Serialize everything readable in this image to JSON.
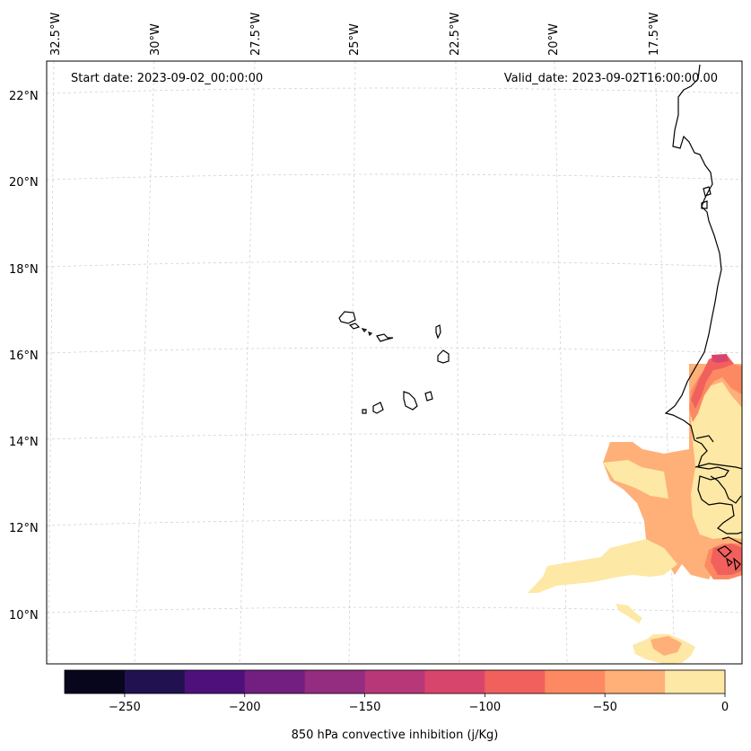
{
  "map": {
    "start_date_text": "Start date: 2023-09-02_00:00:00",
    "valid_date_text": "Valid_date: 2023-09-02T16:00:00.00",
    "lon_labels": [
      "32.5°W",
      "30°W",
      "27.5°W",
      "25°W",
      "22.5°W",
      "20°W",
      "17.5°W"
    ],
    "lat_labels": [
      "22°N",
      "20°N",
      "18°N",
      "16°N",
      "14°N",
      "12°N",
      "10°N"
    ],
    "gridlines": true,
    "coastline_color": "#000000"
  },
  "colorbar": {
    "label": "850 hPa convective inhibition (j/Kg)",
    "ticks": [
      "−250",
      "−200",
      "−150",
      "−100",
      "−50",
      "0"
    ],
    "levels": [
      -275,
      -250,
      -225,
      -200,
      -175,
      -150,
      -125,
      -100,
      -75,
      -50,
      -25,
      0
    ],
    "colors": [
      "#07061c",
      "#221150",
      "#4e117b",
      "#721f81",
      "#942c80",
      "#b73779",
      "#d8456c",
      "#f1605d",
      "#fc8961",
      "#feb078",
      "#fde8a5"
    ],
    "orientation": "horizontal",
    "placement": "bottom"
  }
}
